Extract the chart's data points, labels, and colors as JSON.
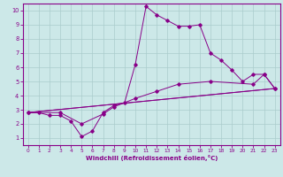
{
  "xlabel": "Windchill (Refroidissement éolien,°C)",
  "bg_color": "#cce8e8",
  "line_color": "#880088",
  "grid_color": "#aacccc",
  "spine_color": "#880088",
  "xlim": [
    -0.5,
    23.5
  ],
  "ylim": [
    0.5,
    10.5
  ],
  "xticks": [
    0,
    1,
    2,
    3,
    4,
    5,
    6,
    7,
    8,
    9,
    10,
    11,
    12,
    13,
    14,
    15,
    16,
    17,
    18,
    19,
    20,
    21,
    22,
    23
  ],
  "yticks": [
    1,
    2,
    3,
    4,
    5,
    6,
    7,
    8,
    9,
    10
  ],
  "line1_x": [
    0,
    1,
    2,
    3,
    4,
    5,
    6,
    7,
    8,
    9,
    10,
    11,
    12,
    13,
    14,
    15,
    16,
    17,
    18,
    19,
    20,
    21,
    22,
    23
  ],
  "line1_y": [
    2.8,
    2.8,
    2.6,
    2.6,
    2.2,
    1.1,
    1.5,
    2.8,
    3.3,
    3.5,
    6.2,
    10.3,
    9.7,
    9.3,
    8.9,
    8.9,
    9.0,
    7.0,
    6.5,
    5.8,
    5.0,
    5.5,
    5.5,
    4.5
  ],
  "line2_x": [
    0,
    23
  ],
  "line2_y": [
    2.8,
    4.5
  ],
  "line3_x": [
    0,
    3,
    5,
    7,
    8,
    10,
    12,
    14,
    17,
    21,
    22,
    23
  ],
  "line3_y": [
    2.8,
    2.8,
    2.0,
    2.7,
    3.2,
    3.8,
    4.3,
    4.8,
    5.0,
    4.8,
    5.5,
    4.5
  ],
  "line4_x": [
    0,
    23
  ],
  "line4_y": [
    2.8,
    4.5
  ]
}
